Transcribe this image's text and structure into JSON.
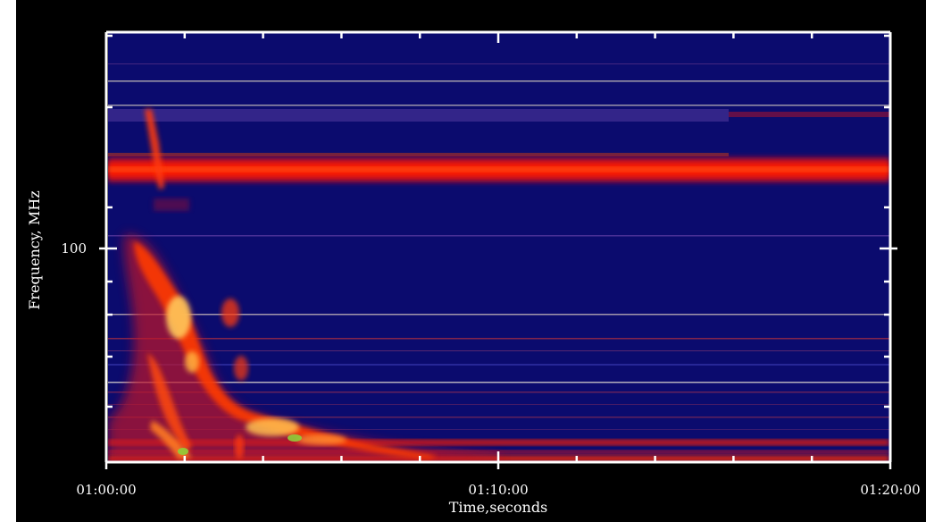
{
  "chart_data": {
    "type": "heatmap",
    "title": "",
    "xlabel": "Time,seconds",
    "ylabel": "Frequency, MHz",
    "x_ticks": [
      "01:00:00",
      "01:10:00",
      "01:20:00"
    ],
    "x_range_minutes": [
      0,
      20
    ],
    "y_ticks": [
      "100"
    ],
    "y_scale": "log",
    "grid": false,
    "legend": "none",
    "colormap": [
      "#0b0b6e",
      "#8b0a2c",
      "#ff1a00",
      "#ff7a1a",
      "#ffd060",
      "#8fce3a"
    ],
    "features": [
      "Persistent horizontal red emission band across the upper part of the spectrum from 01:00:00 to 01:20:00",
      "Bright type-II-like drifting burst starting near 01:00:40 above 100 MHz and drifting to lower frequencies until about 01:07:00",
      "Recorded band at top ends near 01:16:00"
    ]
  }
}
